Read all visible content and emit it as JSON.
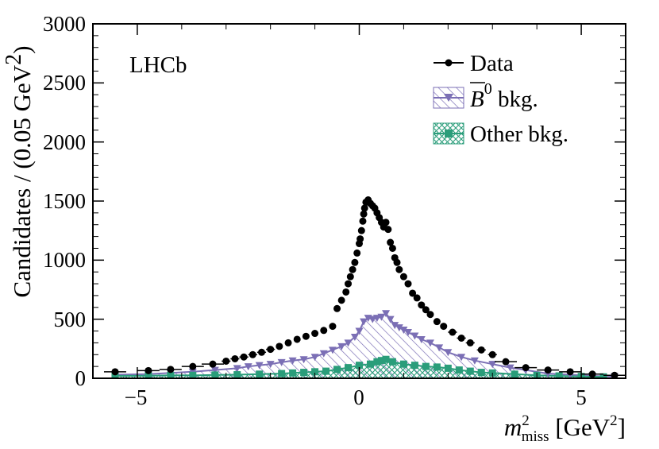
{
  "chart_data": {
    "type": "scatter",
    "title": "",
    "annotation": "LHCb",
    "xlabel": {
      "main": "m",
      "sup": "2",
      "sub": "miss",
      "unit_prefix": " [GeV",
      "unit_sup": "2",
      "unit_suffix": "]"
    },
    "ylabel": {
      "prefix": "Candidates / (0.05 GeV",
      "sup": "2",
      "suffix": ")"
    },
    "xlim": [
      -6,
      6
    ],
    "ylim": [
      0,
      3000
    ],
    "xticks": [
      -5,
      0,
      5
    ],
    "xtick_labels": [
      "−5",
      "0",
      "5"
    ],
    "yticks": [
      0,
      500,
      1000,
      1500,
      2000,
      2500,
      3000
    ],
    "ytick_labels": [
      "0",
      "500",
      "1000",
      "1500",
      "2000",
      "2500",
      "3000"
    ],
    "legend_position": "top-right",
    "legend": {
      "data": "Data",
      "b0_symbol": "B",
      "b0_sup": "0",
      "b0_suffix": " bkg.",
      "other": "Other bkg."
    },
    "series": [
      {
        "name": "Data",
        "color": "#000000",
        "points": [
          [
            -5.5,
            55
          ],
          [
            -4.75,
            65
          ],
          [
            -4.25,
            75
          ],
          [
            -3.75,
            100
          ],
          [
            -3.3,
            120
          ],
          [
            -3.0,
            145
          ],
          [
            -2.8,
            165
          ],
          [
            -2.6,
            180
          ],
          [
            -2.4,
            200
          ],
          [
            -2.2,
            220
          ],
          [
            -2.0,
            245
          ],
          [
            -1.8,
            270
          ],
          [
            -1.6,
            300
          ],
          [
            -1.4,
            330
          ],
          [
            -1.2,
            355
          ],
          [
            -1.0,
            380
          ],
          [
            -0.8,
            405
          ],
          [
            -0.6,
            440
          ],
          [
            -0.5,
            590
          ],
          [
            -0.4,
            660
          ],
          [
            -0.3,
            730
          ],
          [
            -0.25,
            800
          ],
          [
            -0.2,
            860
          ],
          [
            -0.15,
            920
          ],
          [
            -0.1,
            980
          ],
          [
            -0.05,
            1060
          ],
          [
            0.0,
            1140
          ],
          [
            0.02,
            1180
          ],
          [
            0.05,
            1250
          ],
          [
            0.08,
            1330
          ],
          [
            0.1,
            1390
          ],
          [
            0.12,
            1440
          ],
          [
            0.15,
            1490
          ],
          [
            0.2,
            1510
          ],
          [
            0.25,
            1480
          ],
          [
            0.3,
            1460
          ],
          [
            0.35,
            1440
          ],
          [
            0.4,
            1400
          ],
          [
            0.45,
            1360
          ],
          [
            0.5,
            1320
          ],
          [
            0.55,
            1280
          ],
          [
            0.6,
            1320
          ],
          [
            0.65,
            1260
          ],
          [
            0.7,
            1150
          ],
          [
            0.75,
            1100
          ],
          [
            0.8,
            1020
          ],
          [
            0.85,
            980
          ],
          [
            0.9,
            920
          ],
          [
            1.0,
            860
          ],
          [
            1.1,
            800
          ],
          [
            1.2,
            720
          ],
          [
            1.3,
            680
          ],
          [
            1.4,
            620
          ],
          [
            1.5,
            580
          ],
          [
            1.6,
            540
          ],
          [
            1.75,
            480
          ],
          [
            1.9,
            440
          ],
          [
            2.1,
            390
          ],
          [
            2.3,
            340
          ],
          [
            2.5,
            300
          ],
          [
            2.75,
            240
          ],
          [
            3.0,
            200
          ],
          [
            3.3,
            140
          ],
          [
            3.75,
            90
          ],
          [
            4.25,
            70
          ],
          [
            4.75,
            55
          ],
          [
            5.25,
            35
          ],
          [
            5.75,
            25
          ]
        ]
      },
      {
        "name": "B0 bkg.",
        "color": "#7b6fb5",
        "points": [
          [
            -5.5,
            30
          ],
          [
            -4.75,
            35
          ],
          [
            -4.25,
            45
          ],
          [
            -3.75,
            55
          ],
          [
            -3.25,
            70
          ],
          [
            -2.75,
            85
          ],
          [
            -2.5,
            100
          ],
          [
            -2.25,
            110
          ],
          [
            -2.0,
            120
          ],
          [
            -1.75,
            135
          ],
          [
            -1.5,
            150
          ],
          [
            -1.25,
            160
          ],
          [
            -1.0,
            180
          ],
          [
            -0.8,
            210
          ],
          [
            -0.6,
            240
          ],
          [
            -0.4,
            270
          ],
          [
            -0.25,
            300
          ],
          [
            -0.1,
            350
          ],
          [
            0.0,
            400
          ],
          [
            0.1,
            480
          ],
          [
            0.2,
            510
          ],
          [
            0.3,
            500
          ],
          [
            0.4,
            510
          ],
          [
            0.5,
            520
          ],
          [
            0.6,
            550
          ],
          [
            0.7,
            500
          ],
          [
            0.8,
            450
          ],
          [
            0.9,
            430
          ],
          [
            1.0,
            410
          ],
          [
            1.1,
            390
          ],
          [
            1.25,
            360
          ],
          [
            1.4,
            330
          ],
          [
            1.6,
            300
          ],
          [
            1.8,
            260
          ],
          [
            2.0,
            220
          ],
          [
            2.3,
            180
          ],
          [
            2.6,
            150
          ],
          [
            3.0,
            120
          ],
          [
            3.4,
            90
          ],
          [
            3.75,
            70
          ],
          [
            4.25,
            40
          ],
          [
            4.75,
            30
          ],
          [
            5.25,
            20
          ],
          [
            5.75,
            15
          ]
        ]
      },
      {
        "name": "Other bkg.",
        "color": "#2a9d7a",
        "points": [
          [
            -5.5,
            20
          ],
          [
            -4.75,
            22
          ],
          [
            -4.25,
            25
          ],
          [
            -3.75,
            25
          ],
          [
            -3.25,
            28
          ],
          [
            -2.75,
            30
          ],
          [
            -2.25,
            35
          ],
          [
            -1.75,
            40
          ],
          [
            -1.5,
            45
          ],
          [
            -1.25,
            50
          ],
          [
            -1.0,
            55
          ],
          [
            -0.75,
            60
          ],
          [
            -0.5,
            75
          ],
          [
            -0.25,
            90
          ],
          [
            0.0,
            110
          ],
          [
            0.25,
            120
          ],
          [
            0.4,
            140
          ],
          [
            0.5,
            150
          ],
          [
            0.6,
            160
          ],
          [
            0.75,
            140
          ],
          [
            1.0,
            120
          ],
          [
            1.25,
            110
          ],
          [
            1.5,
            100
          ],
          [
            1.75,
            95
          ],
          [
            2.0,
            85
          ],
          [
            2.25,
            70
          ],
          [
            2.5,
            60
          ],
          [
            2.75,
            50
          ],
          [
            3.0,
            45
          ],
          [
            3.5,
            35
          ],
          [
            4.0,
            25
          ],
          [
            4.5,
            20
          ],
          [
            5.0,
            15
          ],
          [
            5.5,
            12
          ]
        ]
      }
    ]
  }
}
